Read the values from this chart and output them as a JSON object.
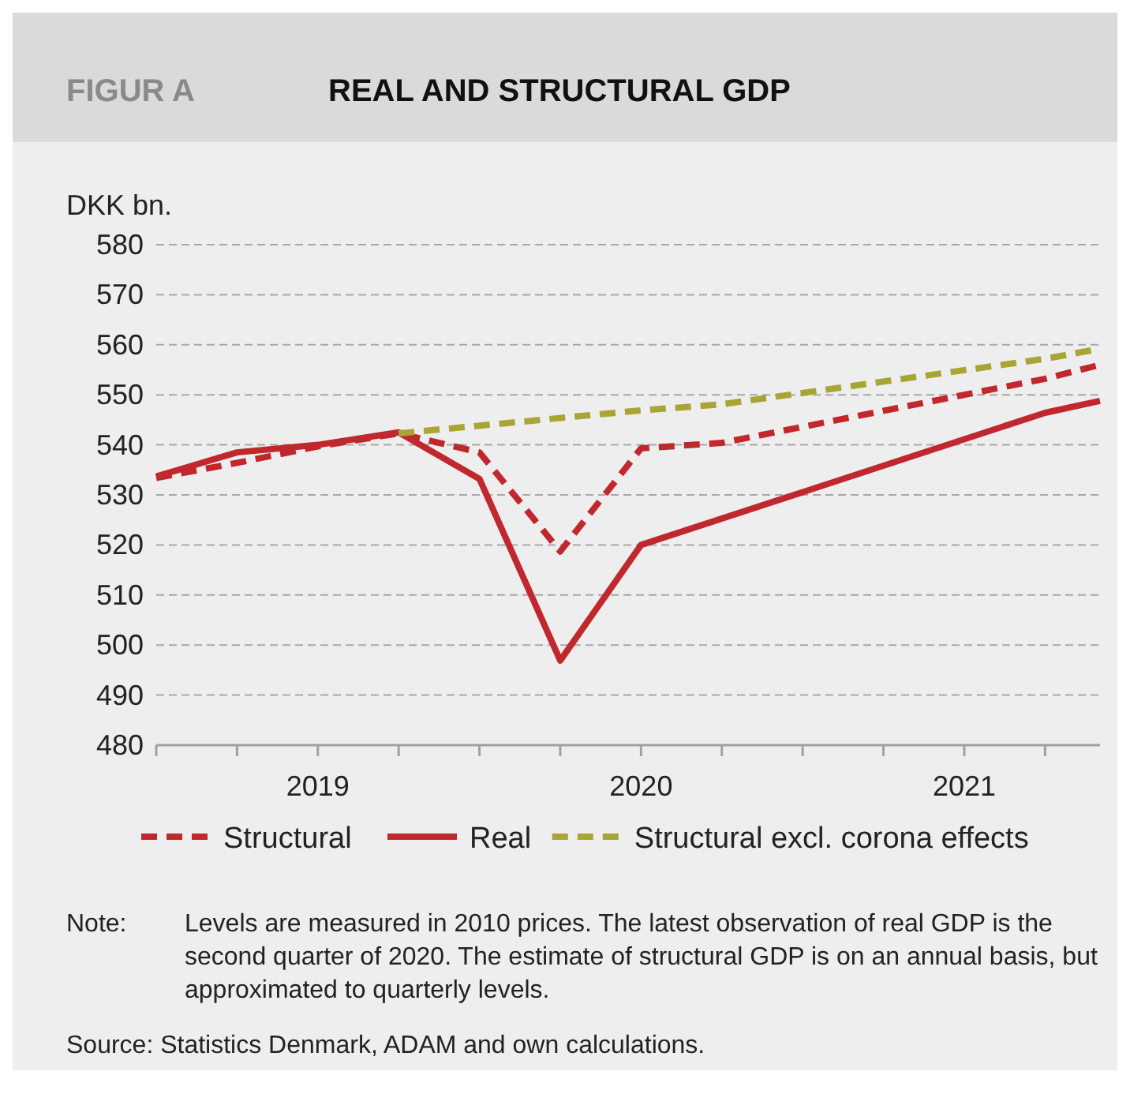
{
  "chart_data": {
    "type": "line",
    "title": "REAL AND STRUCTURAL GDP",
    "subtitle": "FIGUR A",
    "ylabel": "DKK bn.",
    "xlim": [
      2019,
      2021.92
    ],
    "xticks": [
      {
        "value": 2019.25,
        "label": null
      },
      {
        "value": 2019.5,
        "label": "2019"
      },
      {
        "value": 2019.75,
        "label": null
      },
      {
        "value": 2020,
        "label": null
      },
      {
        "value": 2020.25,
        "label": null
      },
      {
        "value": 2020.5,
        "label": "2020"
      },
      {
        "value": 2020.75,
        "label": null
      },
      {
        "value": 2021,
        "label": null
      },
      {
        "value": 2021.25,
        "label": null
      },
      {
        "value": 2021.5,
        "label": "2021"
      },
      {
        "value": 2021.75,
        "label": null
      }
    ],
    "ylim": [
      480,
      580
    ],
    "yticks": [
      480,
      490,
      500,
      510,
      520,
      530,
      540,
      550,
      560,
      570,
      580
    ],
    "grid": "y",
    "legend": "bottom",
    "marker": "none",
    "series": [
      {
        "name": "Structural",
        "color": "#c0282d",
        "line_style": "dashed",
        "x": [
          2019,
          2019.25,
          2019.5,
          2019.75,
          2020,
          2020.25,
          2020.5,
          2020.75,
          2021.75,
          2021.92
        ],
        "values": [
          533.4,
          536.4,
          539.7,
          542.3,
          538.5,
          518.7,
          539.3,
          540.4,
          553.2,
          556.0
        ]
      },
      {
        "name": "Real",
        "color": "#c0282d",
        "line_style": "solid",
        "x": [
          2019,
          2019.25,
          2019.5,
          2019.75,
          2020,
          2020.25,
          2020.5,
          2021.75,
          2021.92
        ],
        "values": [
          533.7,
          538.5,
          540.0,
          542.5,
          533.2,
          496.9,
          520.0,
          546.4,
          548.8
        ]
      },
      {
        "name": "Structural excl. corona effects",
        "color": "#a9a534",
        "line_style": "dashed",
        "x": [
          2019.75,
          2020.5,
          2020.75,
          2021.75,
          2021.92
        ],
        "values": [
          542.3,
          546.9,
          548.1,
          557.2,
          559.2
        ]
      }
    ],
    "annotations": [
      "Note:",
      "Levels are measured in 2010 prices. The latest observation of real GDP is the second quarter of 2020. The estimate of structural GDP is on an annual basis, but approximated to quarterly levels.",
      "Source: Statistics Denmark, ADAM and own calculations."
    ]
  }
}
